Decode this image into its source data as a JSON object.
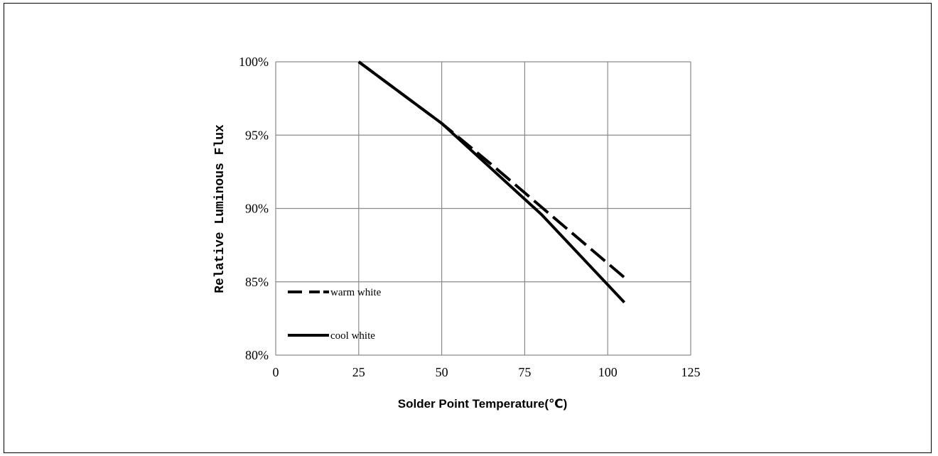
{
  "chart_data": {
    "type": "line",
    "xlabel": "Solder Point Temperature(℃)",
    "ylabel": "Relative Luminous Flux",
    "xlim": [
      0,
      125
    ],
    "ylim": [
      80,
      100
    ],
    "x_ticks": [
      "0",
      "25",
      "50",
      "75",
      "100",
      "125"
    ],
    "y_ticks": [
      "80%",
      "85%",
      "90%",
      "95%",
      "100%"
    ],
    "grid": true,
    "legend_position": "bottom-left",
    "series": [
      {
        "name": "warm white",
        "style": "dashed",
        "color": "#000000",
        "x": [
          25,
          50,
          65,
          80,
          105
        ],
        "y": [
          100,
          95.8,
          93.0,
          90.1,
          85.3
        ]
      },
      {
        "name": "cool white",
        "style": "solid",
        "color": "#000000",
        "x": [
          25,
          50,
          65,
          80,
          105
        ],
        "y": [
          100,
          95.8,
          92.7,
          89.6,
          83.6
        ]
      }
    ]
  }
}
